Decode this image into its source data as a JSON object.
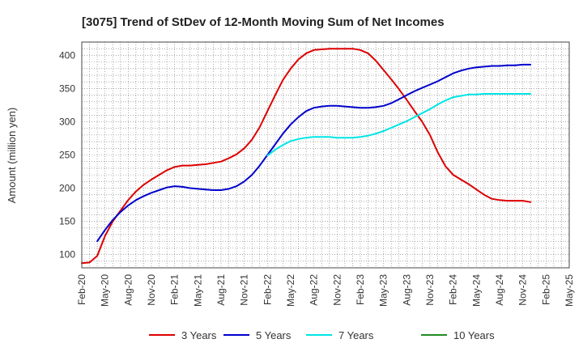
{
  "chart_data": {
    "type": "line",
    "title": "[3075]  Trend of StDev of 12-Month Moving Sum of Net Incomes",
    "xlabel": "",
    "ylabel": "Amount (million yen)",
    "ylim": [
      80,
      420
    ],
    "yticks": [
      100,
      150,
      200,
      250,
      300,
      350,
      400
    ],
    "xlim": [
      "2020-02",
      "2025-05"
    ],
    "xticks": [
      "Feb-20",
      "May-20",
      "Aug-20",
      "Nov-20",
      "Feb-21",
      "May-21",
      "Aug-21",
      "Nov-21",
      "Feb-22",
      "May-22",
      "Aug-22",
      "Nov-22",
      "Feb-23",
      "May-23",
      "Aug-23",
      "Nov-23",
      "Feb-24",
      "May-24",
      "Aug-24",
      "Nov-24",
      "Feb-25",
      "May-25"
    ],
    "grid": true,
    "legend_position": "bottom",
    "series": [
      {
        "name": "3 Years",
        "color": "#dd0000",
        "points": [
          [
            "2020-02",
            87
          ],
          [
            "2020-03",
            88
          ],
          [
            "2020-04",
            98
          ],
          [
            "2020-05",
            128
          ],
          [
            "2020-06",
            150
          ],
          [
            "2020-07",
            166
          ],
          [
            "2020-08",
            182
          ],
          [
            "2020-09",
            195
          ],
          [
            "2020-10",
            205
          ],
          [
            "2020-11",
            213
          ],
          [
            "2020-12",
            220
          ],
          [
            "2021-01",
            227
          ],
          [
            "2021-02",
            232
          ],
          [
            "2021-03",
            234
          ],
          [
            "2021-04",
            234
          ],
          [
            "2021-05",
            235
          ],
          [
            "2021-06",
            236
          ],
          [
            "2021-07",
            238
          ],
          [
            "2021-08",
            240
          ],
          [
            "2021-09",
            245
          ],
          [
            "2021-10",
            251
          ],
          [
            "2021-11",
            260
          ],
          [
            "2021-12",
            273
          ],
          [
            "2022-01",
            292
          ],
          [
            "2022-02",
            316
          ],
          [
            "2022-03",
            340
          ],
          [
            "2022-04",
            363
          ],
          [
            "2022-05",
            380
          ],
          [
            "2022-06",
            394
          ],
          [
            "2022-07",
            403
          ],
          [
            "2022-08",
            408
          ],
          [
            "2022-09",
            409
          ],
          [
            "2022-10",
            410
          ],
          [
            "2022-11",
            410
          ],
          [
            "2022-12",
            410
          ],
          [
            "2023-01",
            410
          ],
          [
            "2023-02",
            408
          ],
          [
            "2023-03",
            403
          ],
          [
            "2023-04",
            392
          ],
          [
            "2023-05",
            378
          ],
          [
            "2023-06",
            364
          ],
          [
            "2023-07",
            349
          ],
          [
            "2023-08",
            333
          ],
          [
            "2023-09",
            316
          ],
          [
            "2023-10",
            300
          ],
          [
            "2023-11",
            280
          ],
          [
            "2023-12",
            254
          ],
          [
            "2024-01",
            233
          ],
          [
            "2024-02",
            220
          ],
          [
            "2024-03",
            213
          ],
          [
            "2024-04",
            206
          ],
          [
            "2024-05",
            198
          ],
          [
            "2024-06",
            190
          ],
          [
            "2024-07",
            184
          ],
          [
            "2024-08",
            182
          ],
          [
            "2024-09",
            181
          ],
          [
            "2024-10",
            181
          ],
          [
            "2024-11",
            181
          ],
          [
            "2024-12",
            179
          ]
        ]
      },
      {
        "name": "5 Years",
        "color": "#0000cc",
        "points": [
          [
            "2020-04",
            120
          ],
          [
            "2020-05",
            137
          ],
          [
            "2020-06",
            152
          ],
          [
            "2020-07",
            164
          ],
          [
            "2020-08",
            174
          ],
          [
            "2020-09",
            182
          ],
          [
            "2020-10",
            188
          ],
          [
            "2020-11",
            193
          ],
          [
            "2020-12",
            197
          ],
          [
            "2021-01",
            201
          ],
          [
            "2021-02",
            203
          ],
          [
            "2021-03",
            202
          ],
          [
            "2021-04",
            200
          ],
          [
            "2021-05",
            199
          ],
          [
            "2021-06",
            198
          ],
          [
            "2021-07",
            197
          ],
          [
            "2021-08",
            197
          ],
          [
            "2021-09",
            199
          ],
          [
            "2021-10",
            203
          ],
          [
            "2021-11",
            210
          ],
          [
            "2021-12",
            220
          ],
          [
            "2022-01",
            234
          ],
          [
            "2022-02",
            250
          ],
          [
            "2022-03",
            266
          ],
          [
            "2022-04",
            282
          ],
          [
            "2022-05",
            296
          ],
          [
            "2022-06",
            307
          ],
          [
            "2022-07",
            316
          ],
          [
            "2022-08",
            321
          ],
          [
            "2022-09",
            323
          ],
          [
            "2022-10",
            324
          ],
          [
            "2022-11",
            324
          ],
          [
            "2022-12",
            323
          ],
          [
            "2023-01",
            322
          ],
          [
            "2023-02",
            321
          ],
          [
            "2023-03",
            321
          ],
          [
            "2023-04",
            322
          ],
          [
            "2023-05",
            324
          ],
          [
            "2023-06",
            328
          ],
          [
            "2023-07",
            334
          ],
          [
            "2023-08",
            340
          ],
          [
            "2023-09",
            346
          ],
          [
            "2023-10",
            351
          ],
          [
            "2023-11",
            356
          ],
          [
            "2023-12",
            361
          ],
          [
            "2024-01",
            367
          ],
          [
            "2024-02",
            373
          ],
          [
            "2024-03",
            377
          ],
          [
            "2024-04",
            380
          ],
          [
            "2024-05",
            382
          ],
          [
            "2024-06",
            383
          ],
          [
            "2024-07",
            384
          ],
          [
            "2024-08",
            384
          ],
          [
            "2024-09",
            385
          ],
          [
            "2024-10",
            385
          ],
          [
            "2024-11",
            386
          ],
          [
            "2024-12",
            386
          ]
        ]
      },
      {
        "name": "7 Years",
        "color": "#00e5e5",
        "points": [
          [
            "2022-02",
            249
          ],
          [
            "2022-03",
            258
          ],
          [
            "2022-04",
            265
          ],
          [
            "2022-05",
            271
          ],
          [
            "2022-06",
            274
          ],
          [
            "2022-07",
            276
          ],
          [
            "2022-08",
            277
          ],
          [
            "2022-09",
            277
          ],
          [
            "2022-10",
            277
          ],
          [
            "2022-11",
            276
          ],
          [
            "2022-12",
            276
          ],
          [
            "2023-01",
            276
          ],
          [
            "2023-02",
            277
          ],
          [
            "2023-03",
            279
          ],
          [
            "2023-04",
            282
          ],
          [
            "2023-05",
            286
          ],
          [
            "2023-06",
            291
          ],
          [
            "2023-07",
            296
          ],
          [
            "2023-08",
            301
          ],
          [
            "2023-09",
            307
          ],
          [
            "2023-10",
            313
          ],
          [
            "2023-11",
            319
          ],
          [
            "2023-12",
            326
          ],
          [
            "2024-01",
            332
          ],
          [
            "2024-02",
            337
          ],
          [
            "2024-03",
            339
          ],
          [
            "2024-04",
            341
          ],
          [
            "2024-05",
            341
          ],
          [
            "2024-06",
            342
          ],
          [
            "2024-07",
            342
          ],
          [
            "2024-08",
            342
          ],
          [
            "2024-09",
            342
          ],
          [
            "2024-10",
            342
          ],
          [
            "2024-11",
            342
          ],
          [
            "2024-12",
            342
          ]
        ]
      },
      {
        "name": "10 Years",
        "color": "#228b22",
        "points": []
      }
    ]
  }
}
